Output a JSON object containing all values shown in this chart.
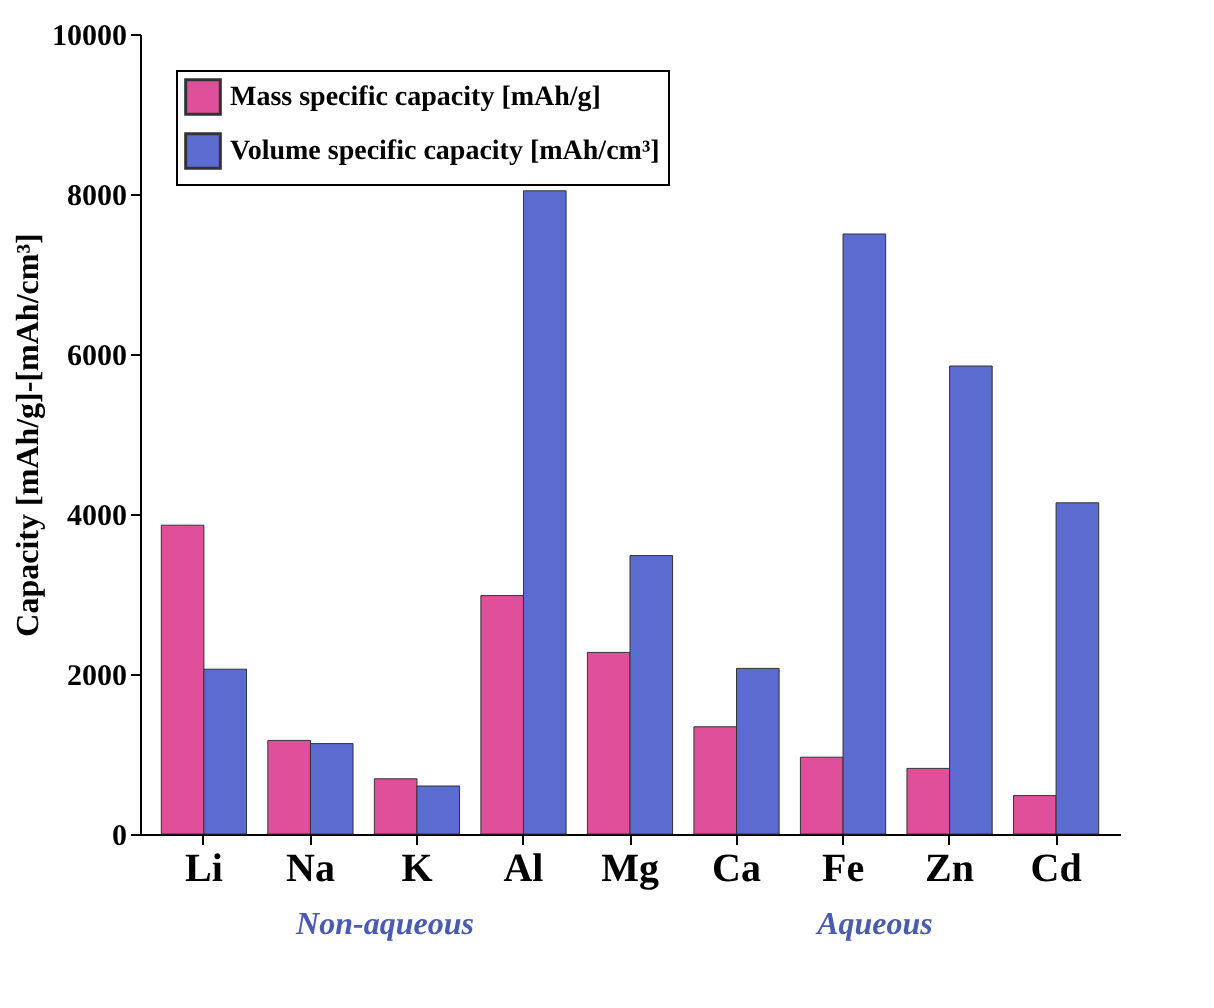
{
  "chart_data": {
    "type": "bar",
    "ylabel": "Capacity [mAh/g]-[mAh/cm³]",
    "categories": [
      "Li",
      "Na",
      "K",
      "Al",
      "Mg",
      "Ca",
      "Fe",
      "Zn",
      "Cd"
    ],
    "series": [
      {
        "name": "Mass specific capacity [mAh/g]",
        "color": "#e0509a",
        "values": [
          3860,
          1170,
          690,
          2980,
          2270,
          1340,
          960,
          820,
          480
        ]
      },
      {
        "name": "Volume specific capacity [mAh/cm³]",
        "color": "#5b6bd0",
        "values": [
          2060,
          1130,
          600,
          8040,
          3480,
          2070,
          7500,
          5850,
          4140
        ]
      }
    ],
    "ylim": [
      0,
      10000
    ],
    "yticks": [
      0,
      2000,
      4000,
      6000,
      8000,
      10000
    ],
    "grid": false,
    "legend": "top left",
    "annotations": [
      "Non-aqueous",
      "Aqueous"
    ]
  }
}
